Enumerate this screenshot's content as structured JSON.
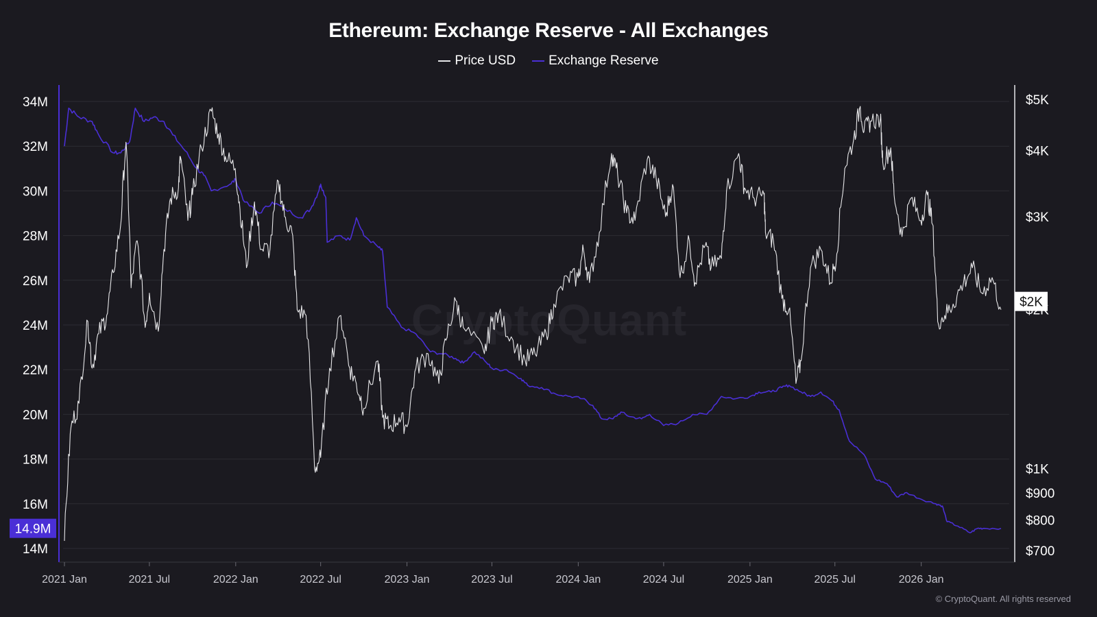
{
  "title": "Ethereum: Exchange Reserve - All Exchanges",
  "legend": [
    {
      "label": "Price USD",
      "color": "#e8e8ea"
    },
    {
      "label": "Exchange Reserve",
      "color": "#4a2fd6"
    }
  ],
  "watermark": "CryptoQuant",
  "copyright": "© CryptoQuant. All rights reserved",
  "colors": {
    "background": "#1b1a20",
    "grid": "#2d2c33",
    "price": "#e8e8ea",
    "reserve": "#4a2fd6",
    "reserve_badge": "#4a2fd6"
  },
  "chart_data": {
    "type": "line",
    "title": "Ethereum: Exchange Reserve - All Exchanges",
    "x_range": [
      "2021-01-01",
      "2026-06-20"
    ],
    "x_ticks": [
      "2021 Jan",
      "2021 Jul",
      "2022 Jan",
      "2022 Jul",
      "2023 Jan",
      "2023 Jul",
      "2024 Jan",
      "2024 Jul",
      "2025 Jan",
      "2025 Jul",
      "2026 Jan"
    ],
    "y_left": {
      "label": "",
      "range": [
        14000000,
        34000000
      ],
      "ticks": [
        "14M",
        "16M",
        "18M",
        "20M",
        "22M",
        "24M",
        "26M",
        "28M",
        "30M",
        "32M",
        "34M"
      ],
      "tick_values": [
        14000000,
        16000000,
        18000000,
        20000000,
        22000000,
        24000000,
        26000000,
        28000000,
        30000000,
        32000000,
        34000000
      ]
    },
    "y_right": {
      "label": "",
      "scale": "log",
      "range": [
        700,
        5000
      ],
      "ticks": [
        "$5K",
        "$4K",
        "$3K",
        "$2K",
        "$1K",
        "$900",
        "$800",
        "$700"
      ],
      "tick_values": [
        5000,
        4000,
        3000,
        2000,
        1000,
        900,
        800,
        700
      ]
    },
    "current_reserve_label": "14.9M",
    "current_price_label": "$2K",
    "series": [
      {
        "name": "Price USD",
        "axis": "right",
        "points": [
          [
            "2021-01-01",
            730
          ],
          [
            "2021-01-15",
            1200
          ],
          [
            "2021-02-01",
            1330
          ],
          [
            "2021-02-20",
            1900
          ],
          [
            "2021-03-01",
            1550
          ],
          [
            "2021-03-15",
            1800
          ],
          [
            "2021-04-01",
            1950
          ],
          [
            "2021-04-15",
            2350
          ],
          [
            "2021-05-01",
            2900
          ],
          [
            "2021-05-12",
            4150
          ],
          [
            "2021-05-23",
            2200
          ],
          [
            "2021-06-05",
            2700
          ],
          [
            "2021-06-22",
            1850
          ],
          [
            "2021-07-01",
            2150
          ],
          [
            "2021-07-20",
            1820
          ],
          [
            "2021-08-01",
            2600
          ],
          [
            "2021-08-15",
            3250
          ],
          [
            "2021-09-01",
            3400
          ],
          [
            "2021-09-05",
            3900
          ],
          [
            "2021-09-21",
            2950
          ],
          [
            "2021-10-01",
            3300
          ],
          [
            "2021-10-20",
            4050
          ],
          [
            "2021-11-10",
            4750
          ],
          [
            "2021-11-25",
            4300
          ],
          [
            "2021-12-10",
            3900
          ],
          [
            "2021-12-31",
            3700
          ],
          [
            "2022-01-10",
            3100
          ],
          [
            "2022-01-24",
            2400
          ],
          [
            "2022-02-10",
            3200
          ],
          [
            "2022-02-24",
            2600
          ],
          [
            "2022-03-15",
            2600
          ],
          [
            "2022-04-02",
            3500
          ],
          [
            "2022-04-15",
            3000
          ],
          [
            "2022-05-01",
            2800
          ],
          [
            "2022-05-12",
            2000
          ],
          [
            "2022-05-31",
            1950
          ],
          [
            "2022-06-18",
            1000
          ],
          [
            "2022-07-01",
            1050
          ],
          [
            "2022-07-20",
            1550
          ],
          [
            "2022-08-13",
            1950
          ],
          [
            "2022-09-01",
            1550
          ],
          [
            "2022-09-15",
            1450
          ],
          [
            "2022-10-01",
            1300
          ],
          [
            "2022-10-31",
            1600
          ],
          [
            "2022-11-10",
            1250
          ],
          [
            "2022-11-25",
            1200
          ],
          [
            "2022-12-15",
            1250
          ],
          [
            "2023-01-01",
            1200
          ],
          [
            "2023-01-20",
            1550
          ],
          [
            "2023-02-15",
            1650
          ],
          [
            "2023-03-10",
            1450
          ],
          [
            "2023-03-25",
            1750
          ],
          [
            "2023-04-15",
            2080
          ],
          [
            "2023-05-01",
            1850
          ],
          [
            "2023-06-15",
            1650
          ],
          [
            "2023-07-01",
            1900
          ],
          [
            "2023-07-15",
            1950
          ],
          [
            "2023-08-15",
            1750
          ],
          [
            "2023-09-10",
            1600
          ],
          [
            "2023-10-01",
            1650
          ],
          [
            "2023-10-25",
            1800
          ],
          [
            "2023-11-10",
            2050
          ],
          [
            "2023-12-10",
            2300
          ],
          [
            "2024-01-01",
            2300
          ],
          [
            "2024-01-12",
            2600
          ],
          [
            "2024-01-25",
            2250
          ],
          [
            "2024-02-15",
            2800
          ],
          [
            "2024-03-12",
            3950
          ],
          [
            "2024-03-25",
            3600
          ],
          [
            "2024-04-13",
            3050
          ],
          [
            "2024-05-01",
            2950
          ],
          [
            "2024-05-27",
            3850
          ],
          [
            "2024-06-15",
            3550
          ],
          [
            "2024-07-05",
            3000
          ],
          [
            "2024-07-20",
            3450
          ],
          [
            "2024-08-05",
            2300
          ],
          [
            "2024-08-25",
            2700
          ],
          [
            "2024-09-06",
            2250
          ],
          [
            "2024-09-28",
            2650
          ],
          [
            "2024-10-10",
            2400
          ],
          [
            "2024-11-01",
            2500
          ],
          [
            "2024-11-12",
            3350
          ],
          [
            "2024-12-08",
            3950
          ],
          [
            "2024-12-20",
            3400
          ],
          [
            "2025-01-10",
            3250
          ],
          [
            "2025-01-31",
            3300
          ],
          [
            "2025-02-03",
            2800
          ],
          [
            "2025-02-20",
            2700
          ],
          [
            "2025-03-10",
            2100
          ],
          [
            "2025-03-25",
            2000
          ],
          [
            "2025-04-09",
            1450
          ],
          [
            "2025-04-20",
            1600
          ],
          [
            "2025-05-10",
            2400
          ],
          [
            "2025-06-01",
            2600
          ],
          [
            "2025-06-22",
            2250
          ],
          [
            "2025-07-05",
            2550
          ],
          [
            "2025-07-22",
            3700
          ],
          [
            "2025-08-10",
            4200
          ],
          [
            "2025-08-24",
            4850
          ],
          [
            "2025-09-01",
            4350
          ],
          [
            "2025-09-15",
            4550
          ],
          [
            "2025-10-06",
            4600
          ],
          [
            "2025-10-11",
            3800
          ],
          [
            "2025-10-28",
            4050
          ],
          [
            "2025-11-04",
            3300
          ],
          [
            "2025-11-21",
            2750
          ],
          [
            "2025-12-10",
            3250
          ],
          [
            "2025-12-31",
            2950
          ],
          [
            "2026-01-14",
            3300
          ],
          [
            "2026-01-25",
            2900
          ],
          [
            "2026-02-05",
            1900
          ],
          [
            "2026-02-20",
            1950
          ],
          [
            "2026-03-10",
            2050
          ],
          [
            "2026-04-01",
            2250
          ],
          [
            "2026-04-20",
            2400
          ],
          [
            "2026-05-10",
            2150
          ],
          [
            "2026-06-01",
            2300
          ],
          [
            "2026-06-20",
            2000
          ]
        ]
      },
      {
        "name": "Exchange Reserve",
        "axis": "left",
        "points": [
          [
            "2021-01-01",
            32000000
          ],
          [
            "2021-01-10",
            33700000
          ],
          [
            "2021-02-01",
            33300000
          ],
          [
            "2021-03-01",
            33100000
          ],
          [
            "2021-03-15",
            32500000
          ],
          [
            "2021-04-15",
            31700000
          ],
          [
            "2021-05-01",
            31700000
          ],
          [
            "2021-05-20",
            32200000
          ],
          [
            "2021-06-01",
            33700000
          ],
          [
            "2021-06-20",
            33100000
          ],
          [
            "2021-07-10",
            33300000
          ],
          [
            "2021-08-01",
            33100000
          ],
          [
            "2021-08-20",
            32500000
          ],
          [
            "2021-09-15",
            31800000
          ],
          [
            "2021-10-10",
            31000000
          ],
          [
            "2021-10-25",
            30700000
          ],
          [
            "2021-11-10",
            30000000
          ],
          [
            "2021-12-20",
            30300000
          ],
          [
            "2022-01-01",
            30500000
          ],
          [
            "2022-01-20",
            29500000
          ],
          [
            "2022-02-20",
            29000000
          ],
          [
            "2022-03-20",
            29500000
          ],
          [
            "2022-04-15",
            29200000
          ],
          [
            "2022-05-20",
            28800000
          ],
          [
            "2022-06-10",
            29200000
          ],
          [
            "2022-06-25",
            29900000
          ],
          [
            "2022-07-01",
            30300000
          ],
          [
            "2022-07-12",
            29700000
          ],
          [
            "2022-07-15",
            27700000
          ],
          [
            "2022-08-10",
            28000000
          ],
          [
            "2022-09-01",
            27800000
          ],
          [
            "2022-09-15",
            28800000
          ],
          [
            "2022-10-01",
            28000000
          ],
          [
            "2022-10-31",
            27500000
          ],
          [
            "2022-11-10",
            27300000
          ],
          [
            "2022-11-20",
            24800000
          ],
          [
            "2022-12-20",
            23900000
          ],
          [
            "2023-01-20",
            23600000
          ],
          [
            "2023-02-20",
            22800000
          ],
          [
            "2023-03-20",
            22700000
          ],
          [
            "2023-04-15",
            22500000
          ],
          [
            "2023-05-01",
            22300000
          ],
          [
            "2023-05-25",
            22800000
          ],
          [
            "2023-06-20",
            22300000
          ],
          [
            "2023-07-05",
            22000000
          ],
          [
            "2023-08-01",
            22000000
          ],
          [
            "2023-09-01",
            21600000
          ],
          [
            "2023-09-15",
            21300000
          ],
          [
            "2023-10-15",
            21200000
          ],
          [
            "2023-11-15",
            20900000
          ],
          [
            "2023-12-15",
            20800000
          ],
          [
            "2024-01-10",
            20700000
          ],
          [
            "2024-02-01",
            20400000
          ],
          [
            "2024-02-20",
            19800000
          ],
          [
            "2024-03-15",
            19800000
          ],
          [
            "2024-04-01",
            20100000
          ],
          [
            "2024-04-20",
            19900000
          ],
          [
            "2024-05-15",
            19800000
          ],
          [
            "2024-06-01",
            20000000
          ],
          [
            "2024-07-01",
            19500000
          ],
          [
            "2024-08-01",
            19600000
          ],
          [
            "2024-09-01",
            20000000
          ],
          [
            "2024-10-01",
            20000000
          ],
          [
            "2024-11-01",
            20800000
          ],
          [
            "2024-12-01",
            20700000
          ],
          [
            "2025-01-01",
            20800000
          ],
          [
            "2025-01-20",
            21000000
          ],
          [
            "2025-02-15",
            21000000
          ],
          [
            "2025-03-10",
            21200000
          ],
          [
            "2025-03-25",
            21300000
          ],
          [
            "2025-04-20",
            21000000
          ],
          [
            "2025-05-10",
            20800000
          ],
          [
            "2025-06-01",
            21000000
          ],
          [
            "2025-06-25",
            20600000
          ],
          [
            "2025-07-10",
            20200000
          ],
          [
            "2025-08-01",
            18800000
          ],
          [
            "2025-09-01",
            18200000
          ],
          [
            "2025-09-25",
            17100000
          ],
          [
            "2025-10-20",
            16900000
          ],
          [
            "2025-11-10",
            16300000
          ],
          [
            "2025-12-01",
            16500000
          ],
          [
            "2026-01-01",
            16200000
          ],
          [
            "2026-02-01",
            16000000
          ],
          [
            "2026-02-15",
            15900000
          ],
          [
            "2026-02-25",
            15200000
          ],
          [
            "2026-03-20",
            15000000
          ],
          [
            "2026-04-15",
            14700000
          ],
          [
            "2026-05-01",
            14900000
          ],
          [
            "2026-05-15",
            14900000
          ],
          [
            "2026-06-20",
            14900000
          ]
        ]
      }
    ]
  }
}
